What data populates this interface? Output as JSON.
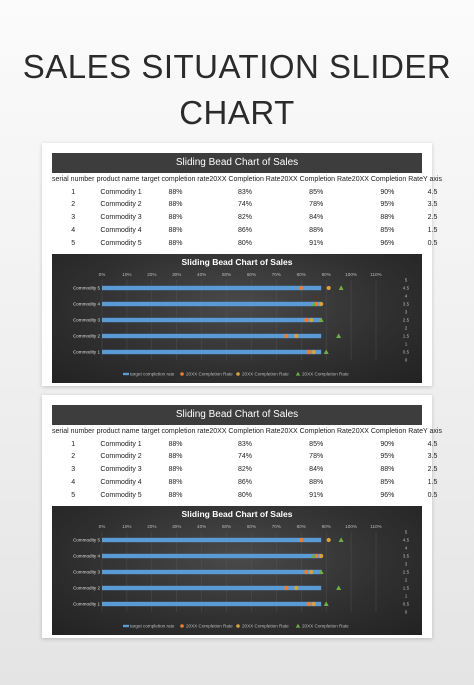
{
  "page": {
    "title": "SALES SITUATION SLIDER CHART"
  },
  "panels": [
    {
      "header": "Sliding Bead Chart of Sales",
      "columns": [
        "serial number",
        "product name",
        "target completion rate",
        "20XX Completion Rate",
        "20XX Completion Rate",
        "20XX Completion Rate",
        "Y axis"
      ],
      "rows": [
        [
          "1",
          "Commodity 1",
          "88%",
          "83%",
          "85%",
          "90%",
          "4.5"
        ],
        [
          "2",
          "Commodity 2",
          "88%",
          "74%",
          "78%",
          "95%",
          "3.5"
        ],
        [
          "3",
          "Commodity 3",
          "88%",
          "82%",
          "84%",
          "88%",
          "2.5"
        ],
        [
          "4",
          "Commodity 4",
          "88%",
          "86%",
          "88%",
          "85%",
          "1.5"
        ],
        [
          "5",
          "Commodity 5",
          "88%",
          "80%",
          "91%",
          "96%",
          "0.5"
        ]
      ]
    },
    {
      "header": "Sliding Bead Chart of Sales",
      "columns": [
        "serial number",
        "product name",
        "target completion rate",
        "20XX Completion Rate",
        "20XX Completion Rate",
        "20XX Completion Rate",
        "Y axis"
      ],
      "rows": [
        [
          "1",
          "Commodity 1",
          "88%",
          "83%",
          "85%",
          "90%",
          "4.5"
        ],
        [
          "2",
          "Commodity 2",
          "88%",
          "74%",
          "78%",
          "95%",
          "3.5"
        ],
        [
          "3",
          "Commodity 3",
          "88%",
          "82%",
          "84%",
          "88%",
          "2.5"
        ],
        [
          "4",
          "Commodity 4",
          "88%",
          "86%",
          "88%",
          "85%",
          "1.5"
        ],
        [
          "5",
          "Commodity 5",
          "88%",
          "80%",
          "91%",
          "96%",
          "0.5"
        ]
      ]
    }
  ],
  "chart_data": [
    {
      "type": "bar",
      "title": "Sliding Bead Chart of Sales",
      "categories": [
        "Commodity 1",
        "Commodity 2",
        "Commodity 3",
        "Commodity 4",
        "Commodity 5"
      ],
      "x_ticks": [
        "0%",
        "10%",
        "20%",
        "30%",
        "40%",
        "50%",
        "60%",
        "70%",
        "80%",
        "90%",
        "100%",
        "110%"
      ],
      "y_ticks": [
        "5",
        "4.5",
        "4",
        "3.5",
        "3",
        "2.5",
        "2",
        "1.5",
        "1",
        "0.5",
        "0"
      ],
      "xlim": [
        0,
        1.1
      ],
      "ylim": [
        0,
        5
      ],
      "grid": true,
      "legend": "bottom",
      "series": [
        {
          "name": "target completion rate",
          "kind": "bar",
          "color": "#5b9bd5",
          "x": [
            0.88,
            0.88,
            0.88,
            0.88,
            0.88
          ],
          "y": [
            0.5,
            1.5,
            2.5,
            3.5,
            4.5
          ]
        },
        {
          "name": "20XX Completion Rate",
          "kind": "marker-circle",
          "color": "#ed7d31",
          "x": [
            0.83,
            0.74,
            0.82,
            0.86,
            0.8
          ],
          "y": [
            0.5,
            1.5,
            2.5,
            3.5,
            4.5
          ]
        },
        {
          "name": "20XX Completion Rate",
          "kind": "marker-circle",
          "color": "#d9a13b",
          "x": [
            0.85,
            0.78,
            0.84,
            0.88,
            0.91
          ],
          "y": [
            0.5,
            1.5,
            2.5,
            3.5,
            4.5
          ]
        },
        {
          "name": "20XX Completion Rate",
          "kind": "marker-triangle",
          "color": "#70ad47",
          "x": [
            0.9,
            0.95,
            0.88,
            0.85,
            0.96
          ],
          "y": [
            0.5,
            1.5,
            2.5,
            3.5,
            4.5
          ]
        }
      ]
    },
    {
      "type": "bar",
      "title": "Sliding Bead Chart of Sales",
      "categories": [
        "Commodity 1",
        "Commodity 2",
        "Commodity 3",
        "Commodity 4",
        "Commodity 5"
      ],
      "x_ticks": [
        "0%",
        "10%",
        "20%",
        "30%",
        "40%",
        "50%",
        "60%",
        "70%",
        "80%",
        "90%",
        "100%",
        "110%"
      ],
      "y_ticks": [
        "5",
        "4.5",
        "4",
        "3.5",
        "3",
        "2.5",
        "2",
        "1.5",
        "1",
        "0.5",
        "0"
      ],
      "xlim": [
        0,
        1.1
      ],
      "ylim": [
        0,
        5
      ],
      "grid": true,
      "legend": "bottom",
      "series": [
        {
          "name": "target completion rate",
          "kind": "bar",
          "color": "#5b9bd5",
          "x": [
            0.88,
            0.88,
            0.88,
            0.88,
            0.88
          ],
          "y": [
            0.5,
            1.5,
            2.5,
            3.5,
            4.5
          ]
        },
        {
          "name": "20XX Completion Rate",
          "kind": "marker-circle",
          "color": "#ed7d31",
          "x": [
            0.83,
            0.74,
            0.82,
            0.86,
            0.8
          ],
          "y": [
            0.5,
            1.5,
            2.5,
            3.5,
            4.5
          ]
        },
        {
          "name": "20XX Completion Rate",
          "kind": "marker-circle",
          "color": "#d9a13b",
          "x": [
            0.85,
            0.78,
            0.84,
            0.88,
            0.91
          ],
          "y": [
            0.5,
            1.5,
            2.5,
            3.5,
            4.5
          ]
        },
        {
          "name": "20XX Completion Rate",
          "kind": "marker-triangle",
          "color": "#70ad47",
          "x": [
            0.9,
            0.95,
            0.88,
            0.85,
            0.96
          ],
          "y": [
            0.5,
            1.5,
            2.5,
            3.5,
            4.5
          ]
        }
      ]
    }
  ]
}
